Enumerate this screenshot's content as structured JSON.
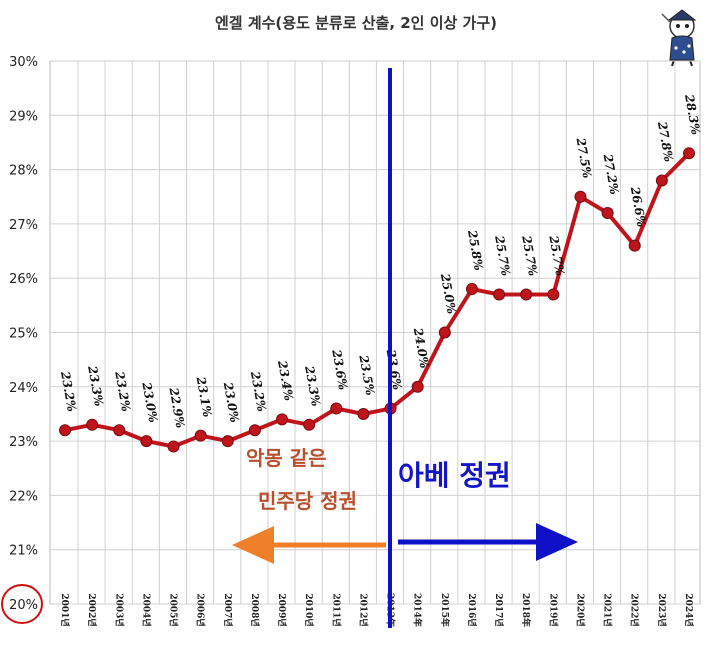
{
  "chart_data": {
    "type": "line",
    "title": "엔겔 계수(용도 분류로 산출, 2인 이상 가구)",
    "categories": [
      "2001년",
      "2002년",
      "2003년",
      "2004년",
      "2005년",
      "2006년",
      "2007년",
      "2008년",
      "2009년",
      "2010년",
      "2011년",
      "2012년",
      "2013年",
      "2014年",
      "2015年",
      "2016년",
      "2017년",
      "2018年",
      "2019년",
      "2020년",
      "2021년",
      "2022년",
      "2023년",
      "2024년"
    ],
    "series": [
      {
        "values": [
          23.2,
          23.3,
          23.2,
          23.0,
          22.9,
          23.1,
          23.0,
          23.2,
          23.4,
          23.3,
          23.6,
          23.5,
          23.6,
          24.0,
          25.0,
          25.8,
          25.7,
          25.7,
          25.7,
          27.5,
          27.2,
          26.6,
          27.8,
          28.3
        ]
      }
    ],
    "data_labels": [
      "23.2%",
      "23.3%",
      "23.2%",
      "23.0%",
      "22.9%",
      "23.1%",
      "23.0%",
      "23.2%",
      "23.4%",
      "23.3%",
      "23.6%",
      "23.5%",
      "23.6%",
      "24.0%",
      "25.0%",
      "25.8%",
      "25.7%",
      "25.7%",
      "25.7%",
      "27.5%",
      "27.2%",
      "26.6%",
      "27.8%",
      "28.3%"
    ],
    "yticks": [
      "20%",
      "21%",
      "22%",
      "23%",
      "24%",
      "25%",
      "26%",
      "27%",
      "28%",
      "29%",
      "30%"
    ],
    "ylim": [
      20,
      30
    ],
    "grid": true,
    "colors": {
      "line": "#c0141c",
      "marker": "#c0141c",
      "divider": "#1010c8",
      "left_arrow": "#f07f2a",
      "right_arrow": "#1010c8",
      "annotation_left": "#b8502e",
      "annotation_right": "#1515c8",
      "circle": "#d01010",
      "grid": "#d0d0d0"
    },
    "annotations": {
      "left_line1": "악몽 같은",
      "left_line2": "민주당 정권",
      "right": "아베 정권"
    },
    "divider_at_category": "2013年",
    "highlighted_tick": "20%",
    "icon": "cartoon-mascot-icon"
  }
}
